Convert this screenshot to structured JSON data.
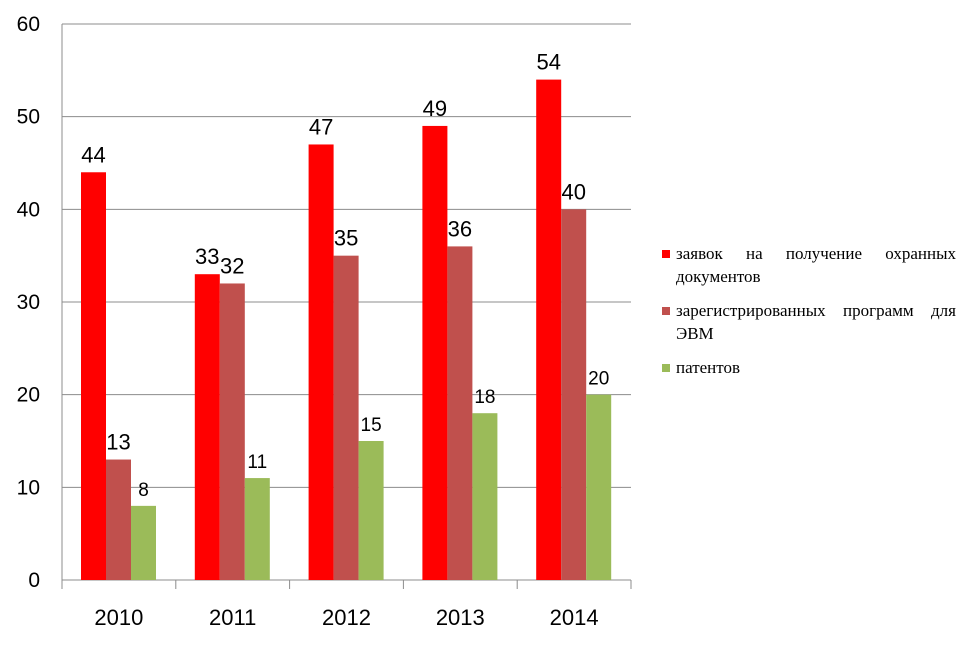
{
  "chart_data": {
    "type": "bar",
    "categories": [
      "2010",
      "2011",
      "2012",
      "2013",
      "2014"
    ],
    "series": [
      {
        "name": "заявок на получение охранных документов",
        "values": [
          44,
          33,
          47,
          49,
          54
        ],
        "color": "#ff0000"
      },
      {
        "name": "зарегистрированных программ для ЭВМ",
        "values": [
          13,
          32,
          35,
          36,
          40
        ],
        "color": "#c0504d"
      },
      {
        "name": "патентов",
        "values": [
          8,
          11,
          15,
          18,
          20
        ],
        "color": "#9bbb59"
      }
    ],
    "yticks": [
      "0",
      "10",
      "20",
      "30",
      "40",
      "50",
      "60"
    ],
    "ylim": [
      0,
      60
    ],
    "grid": true,
    "legend_position": "right",
    "title": "",
    "xlabel": "",
    "ylabel": ""
  }
}
